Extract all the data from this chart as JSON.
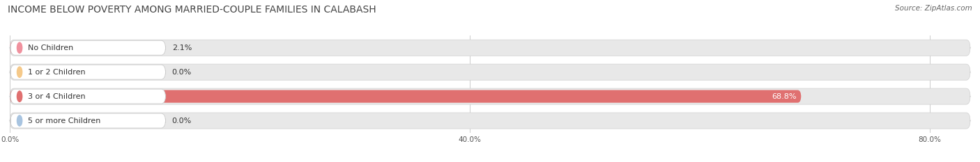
{
  "title": "INCOME BELOW POVERTY AMONG MARRIED-COUPLE FAMILIES IN CALABASH",
  "source": "Source: ZipAtlas.com",
  "categories": [
    "No Children",
    "1 or 2 Children",
    "3 or 4 Children",
    "5 or more Children"
  ],
  "values": [
    2.1,
    0.0,
    68.8,
    0.0
  ],
  "bar_colors": [
    "#f0919e",
    "#f5c98a",
    "#e07070",
    "#a8c4e0"
  ],
  "dot_colors": [
    "#f0919e",
    "#f5c98a",
    "#e07070",
    "#a8c4e0"
  ],
  "xlim_max": 83.5,
  "xticks": [
    0,
    40,
    80
  ],
  "xtick_labels": [
    "0.0%",
    "40.0%",
    "80.0%"
  ],
  "bar_height": 0.52,
  "figsize": [
    14.06,
    2.33
  ],
  "dpi": 100,
  "background_color": "#ffffff",
  "bar_bg_color": "#e8e8e8",
  "title_fontsize": 10,
  "label_fontsize": 8,
  "value_fontsize": 8,
  "source_fontsize": 7.5
}
